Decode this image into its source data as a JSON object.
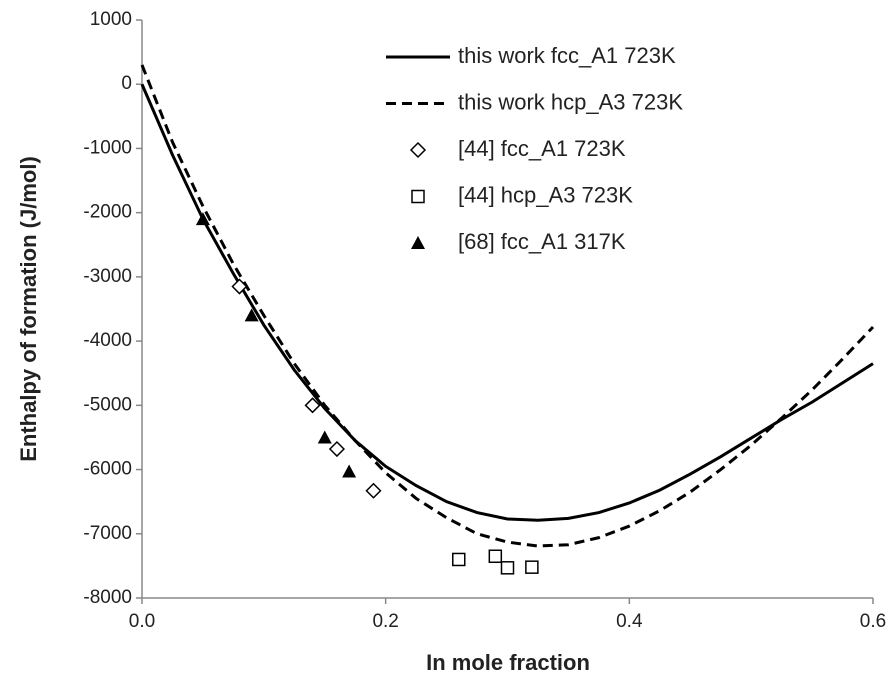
{
  "chart_data": {
    "type": "line",
    "x_label": "In mole fraction",
    "y_label": "Enthalpy of formation (J/mol)",
    "xlim": [
      0,
      0.6
    ],
    "xticks": [
      {
        "value": 0,
        "label": "0.0"
      },
      0.2,
      0.4,
      0.6
    ],
    "ylim": [
      -8000,
      1000
    ],
    "yticks": [
      1000,
      0,
      -1000,
      -2000,
      -3000,
      -4000,
      -5000,
      -6000,
      -7000,
      -8000
    ],
    "legend": "upper right",
    "series": [
      {
        "name": "this work fcc_A1 723K",
        "color": "#000000",
        "style": "solid",
        "marker": "none",
        "x": [
          0,
          0.025,
          0.05,
          0.075,
          0.1,
          0.125,
          0.15,
          0.175,
          0.2,
          0.225,
          0.25,
          0.275,
          0.3,
          0.325,
          0.35,
          0.375,
          0.4,
          0.425,
          0.45,
          0.475,
          0.5,
          0.525,
          0.55,
          0.575,
          0.6
        ],
        "values": [
          0,
          -1100,
          -2100,
          -2950,
          -3750,
          -4450,
          -5050,
          -5550,
          -5950,
          -6250,
          -6500,
          -6670,
          -6770,
          -6790,
          -6760,
          -6670,
          -6520,
          -6320,
          -6070,
          -5800,
          -5510,
          -5220,
          -4950,
          -4650,
          -4350
        ]
      },
      {
        "name": "this work hcp_A3 723K",
        "color": "#000000",
        "style": "dashed",
        "marker": "none",
        "x": [
          0,
          0.025,
          0.05,
          0.075,
          0.1,
          0.125,
          0.15,
          0.175,
          0.2,
          0.225,
          0.25,
          0.275,
          0.3,
          0.325,
          0.35,
          0.375,
          0.4,
          0.425,
          0.45,
          0.475,
          0.5,
          0.525,
          0.55,
          0.575,
          0.6
        ],
        "values": [
          300,
          -900,
          -1900,
          -2800,
          -3600,
          -4350,
          -5000,
          -5550,
          -6050,
          -6450,
          -6750,
          -7000,
          -7130,
          -7190,
          -7170,
          -7060,
          -6880,
          -6640,
          -6350,
          -6000,
          -5620,
          -5200,
          -4760,
          -4280,
          -3780
        ]
      },
      {
        "name": "[44] fcc_A1 723K",
        "color": "#000000",
        "style": "none",
        "marker": "diamond",
        "x": [
          0.08,
          0.14,
          0.16,
          0.19
        ],
        "values": [
          -3150,
          -5000,
          -5680,
          -6330
        ]
      },
      {
        "name": "[44] hcp_A3 723K",
        "color": "#000000",
        "style": "none",
        "marker": "square",
        "x": [
          0.26,
          0.29,
          0.3,
          0.32
        ],
        "values": [
          -7400,
          -7350,
          -7530,
          -7520
        ]
      },
      {
        "name": "[68] fcc_A1 317K",
        "color": "#000000",
        "style": "none",
        "marker": "triangle",
        "x": [
          0.05,
          0.09,
          0.15,
          0.17
        ],
        "values": [
          -2100,
          -3600,
          -5500,
          -6030
        ]
      }
    ]
  }
}
